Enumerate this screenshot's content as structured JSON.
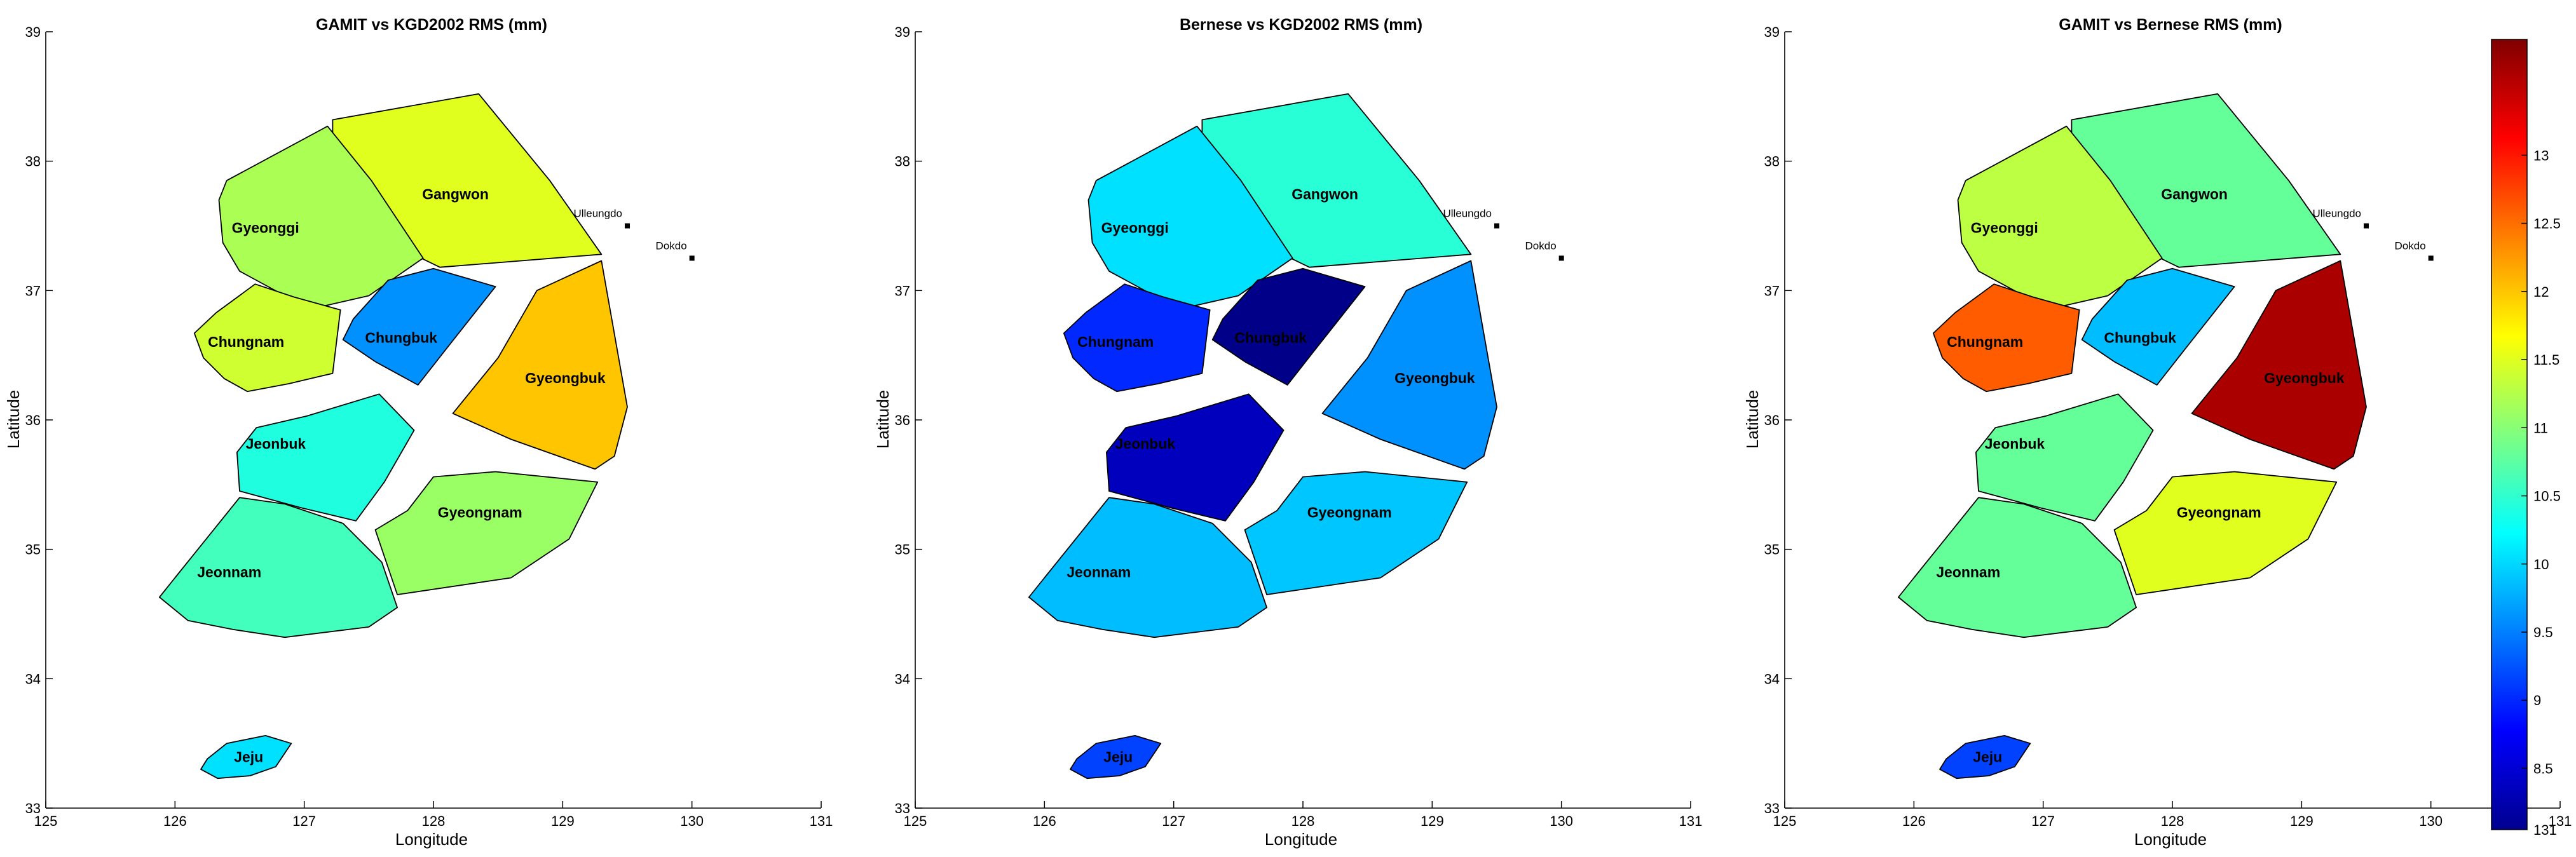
{
  "chart_data": {
    "type": "choropleth-map",
    "colormap": "jet",
    "colorbar": {
      "min": 8.05,
      "max": 13.85,
      "ticks": [
        8.5,
        9,
        9.5,
        10,
        10.5,
        11,
        11.5,
        12,
        12.5,
        13
      ],
      "tick_labels": [
        "8.5",
        "9",
        "9.5",
        "10",
        "10.5",
        "11",
        "11.5",
        "12",
        "12.5",
        "13"
      ],
      "bottom_label": "131"
    },
    "axes": {
      "xlim": [
        125,
        131
      ],
      "ylim": [
        33,
        39
      ],
      "xticks": [
        "125",
        "126",
        "127",
        "128",
        "129",
        "130",
        "131"
      ],
      "yticks": [
        "33",
        "34",
        "35",
        "36",
        "37",
        "38",
        "39"
      ],
      "xlabel": "Longitude",
      "ylabel": "Latitude"
    },
    "regions": [
      {
        "name": "Gangwon",
        "label_lon": 128.17,
        "label_lat": 37.75,
        "outline": [
          [
            127.22,
            38.32
          ],
          [
            128.35,
            38.52
          ],
          [
            128.9,
            37.85
          ],
          [
            129.3,
            37.28
          ],
          [
            128.05,
            37.18
          ],
          [
            127.7,
            37.35
          ],
          [
            127.22,
            37.8
          ]
        ]
      },
      {
        "name": "Gyeonggi",
        "label_lon": 126.7,
        "label_lat": 37.49,
        "outline": [
          [
            127.18,
            38.27
          ],
          [
            126.4,
            37.85
          ],
          [
            126.34,
            37.7
          ],
          [
            126.37,
            37.37
          ],
          [
            126.5,
            37.15
          ],
          [
            126.85,
            36.96
          ],
          [
            127.15,
            36.88
          ],
          [
            127.5,
            36.96
          ],
          [
            127.92,
            37.25
          ],
          [
            127.52,
            37.85
          ]
        ]
      },
      {
        "name": "Chungbuk",
        "label_lon": 127.75,
        "label_lat": 36.64,
        "outline": [
          [
            127.38,
            36.78
          ],
          [
            127.65,
            37.08
          ],
          [
            128.0,
            37.17
          ],
          [
            128.48,
            37.03
          ],
          [
            128.1,
            36.55
          ],
          [
            127.88,
            36.27
          ],
          [
            127.55,
            36.45
          ],
          [
            127.3,
            36.62
          ]
        ]
      },
      {
        "name": "Chungnam",
        "label_lon": 126.55,
        "label_lat": 36.61,
        "outline": [
          [
            126.32,
            36.83
          ],
          [
            126.15,
            36.67
          ],
          [
            126.22,
            36.48
          ],
          [
            126.38,
            36.32
          ],
          [
            126.56,
            36.22
          ],
          [
            126.88,
            36.28
          ],
          [
            127.22,
            36.36
          ],
          [
            127.28,
            36.85
          ],
          [
            126.92,
            36.95
          ],
          [
            126.62,
            37.05
          ]
        ]
      },
      {
        "name": "Gyeongbuk",
        "label_lon": 129.02,
        "label_lat": 36.33,
        "outline": [
          [
            128.8,
            37.0
          ],
          [
            129.3,
            37.23
          ],
          [
            129.5,
            36.1
          ],
          [
            129.4,
            35.72
          ],
          [
            129.25,
            35.62
          ],
          [
            128.6,
            35.85
          ],
          [
            128.15,
            36.05
          ],
          [
            128.5,
            36.48
          ]
        ]
      },
      {
        "name": "Jeonbuk",
        "label_lon": 126.78,
        "label_lat": 35.82,
        "outline": [
          [
            126.5,
            35.45
          ],
          [
            126.98,
            35.32
          ],
          [
            127.4,
            35.22
          ],
          [
            127.62,
            35.52
          ],
          [
            127.85,
            35.92
          ],
          [
            127.58,
            36.2
          ],
          [
            127.02,
            36.03
          ],
          [
            126.63,
            35.94
          ],
          [
            126.48,
            35.75
          ]
        ]
      },
      {
        "name": "Gyeongnam",
        "label_lon": 128.36,
        "label_lat": 35.29,
        "outline": [
          [
            127.55,
            35.15
          ],
          [
            127.72,
            34.65
          ],
          [
            128.6,
            34.78
          ],
          [
            129.05,
            35.08
          ],
          [
            129.27,
            35.52
          ],
          [
            128.48,
            35.6
          ],
          [
            128.0,
            35.56
          ],
          [
            127.8,
            35.3
          ]
        ]
      },
      {
        "name": "Jeonnam",
        "label_lon": 126.42,
        "label_lat": 34.83,
        "outline": [
          [
            126.0,
            34.78
          ],
          [
            125.88,
            34.63
          ],
          [
            126.1,
            34.45
          ],
          [
            126.45,
            34.38
          ],
          [
            126.85,
            34.32
          ],
          [
            127.5,
            34.4
          ],
          [
            127.72,
            34.55
          ],
          [
            127.6,
            34.9
          ],
          [
            127.3,
            35.2
          ],
          [
            126.85,
            35.35
          ],
          [
            126.5,
            35.4
          ]
        ]
      },
      {
        "name": "Jeju",
        "label_lon": 126.57,
        "label_lat": 33.4,
        "outline": [
          [
            126.25,
            33.38
          ],
          [
            126.2,
            33.3
          ],
          [
            126.33,
            33.23
          ],
          [
            126.58,
            33.25
          ],
          [
            126.78,
            33.32
          ],
          [
            126.9,
            33.5
          ],
          [
            126.7,
            33.56
          ],
          [
            126.4,
            33.5
          ]
        ]
      }
    ],
    "islands": [
      {
        "name": "Ulleungdo",
        "lon": 129.5,
        "lat": 37.5
      },
      {
        "name": "Dokdo",
        "lon": 130.0,
        "lat": 37.25
      }
    ],
    "panels": [
      {
        "title": "GAMIT vs KGD2002 RMS (mm)",
        "values": {
          "Gangwon": 11.5,
          "Gyeonggi": 11.2,
          "Chungbuk": 9.6,
          "Chungnam": 11.4,
          "Gyeongbuk": 12.0,
          "Jeonbuk": 10.4,
          "Gyeongnam": 11.1,
          "Jeonnam": 10.6,
          "Jeju": 10.05
        }
      },
      {
        "title": "Bernese vs KGD2002 RMS (mm)",
        "values": {
          "Gangwon": 10.45,
          "Gyeonggi": 10.05,
          "Chungbuk": 8.1,
          "Chungnam": 9.0,
          "Gyeongbuk": 9.6,
          "Jeonbuk": 8.4,
          "Gyeongnam": 9.9,
          "Jeonnam": 9.85,
          "Jeju": 9.15
        }
      },
      {
        "title": "GAMIT vs Bernese RMS (mm)",
        "values": {
          "Gangwon": 10.8,
          "Gyeonggi": 11.3,
          "Chungbuk": 9.85,
          "Chungnam": 12.6,
          "Gyeongbuk": 13.6,
          "Jeonbuk": 10.8,
          "Gyeongnam": 11.5,
          "Jeonnam": 10.8,
          "Jeju": 9.15
        }
      }
    ]
  }
}
